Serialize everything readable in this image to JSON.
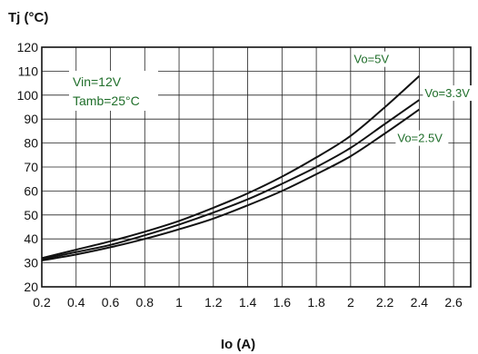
{
  "chart_data": {
    "type": "line",
    "xlabel": "Io (A)",
    "ylabel": "Tj (°C)",
    "xlim": [
      0.2,
      2.7
    ],
    "ylim": [
      20,
      120
    ],
    "x_ticks": [
      0.2,
      0.4,
      0.6,
      0.8,
      1,
      1.2,
      1.4,
      1.6,
      1.8,
      2,
      2.2,
      2.4,
      2.6
    ],
    "x_tick_labels": [
      "0.2",
      "0.4",
      "0.6",
      "0.8",
      "1",
      "1.2",
      "1.4",
      "1.6",
      "1.8",
      "2",
      "2.2",
      "2.4",
      "2.6"
    ],
    "y_ticks": [
      20,
      30,
      40,
      50,
      60,
      70,
      80,
      90,
      100,
      110,
      120
    ],
    "y_tick_labels": [
      "20",
      "30",
      "40",
      "50",
      "60",
      "70",
      "80",
      "90",
      "100",
      "110",
      "120"
    ],
    "grid": true,
    "annotations": [
      "Vin=12V",
      "Tamb=25°C"
    ],
    "series": [
      {
        "name": "Vo=5V",
        "x": [
          0.2,
          0.4,
          0.6,
          0.8,
          1.0,
          1.2,
          1.4,
          1.6,
          1.8,
          2.0,
          2.2,
          2.4
        ],
        "y": [
          32,
          35.5,
          39,
          43,
          47.5,
          53,
          59,
          66,
          74,
          83,
          95,
          108
        ]
      },
      {
        "name": "Vo=3.3V",
        "x": [
          0.2,
          0.4,
          0.6,
          0.8,
          1.0,
          1.2,
          1.4,
          1.6,
          1.8,
          2.0,
          2.2,
          2.4
        ],
        "y": [
          31.5,
          34.5,
          37.5,
          41.5,
          46,
          51,
          56.5,
          63,
          70,
          78,
          88,
          98
        ]
      },
      {
        "name": "Vo=2.5V",
        "x": [
          0.2,
          0.4,
          0.6,
          0.8,
          1.0,
          1.2,
          1.4,
          1.6,
          1.8,
          2.0,
          2.2,
          2.4
        ],
        "y": [
          31,
          33.5,
          36.5,
          40,
          44,
          48.5,
          54,
          60,
          67,
          74.5,
          84,
          94
        ]
      }
    ]
  }
}
